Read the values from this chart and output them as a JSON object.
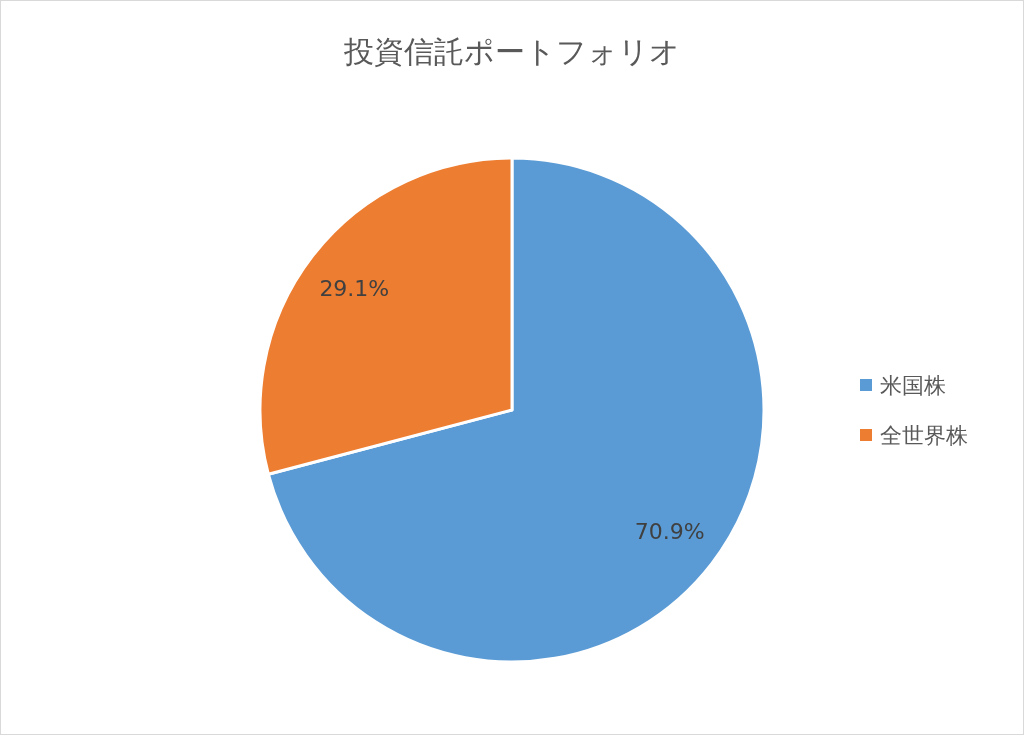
{
  "chart_data": {
    "type": "pie",
    "title": "投資信託ポートフォリオ",
    "categories": [
      "米国株",
      "全世界株"
    ],
    "values": [
      70.9,
      29.1
    ],
    "colors": [
      "#5b9bd5",
      "#ed7d31"
    ],
    "value_labels": [
      "70.9%",
      "29.1%"
    ],
    "legend": "right"
  }
}
